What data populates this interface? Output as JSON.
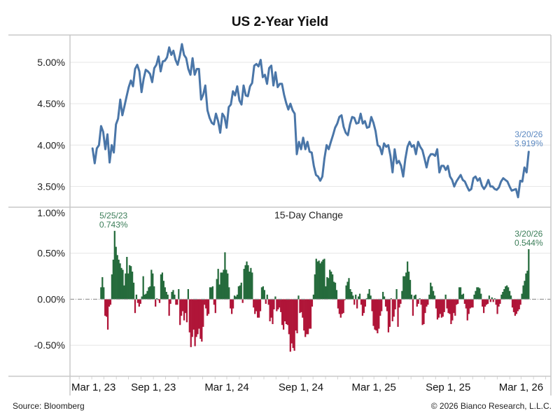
{
  "chart_data": {
    "title": "US 2-Year Yield",
    "grid": true,
    "x_axis": {
      "type": "date",
      "range": [
        "2023-02-06",
        "2026-05-14"
      ],
      "minor_ticks": "monthly",
      "ticks": [
        {
          "date": "2023-03-01",
          "label": "Mar 1, 23"
        },
        {
          "date": "2023-09-01",
          "label": "Sep 1, 23"
        },
        {
          "date": "2024-03-01",
          "label": "Mar 1, 24"
        },
        {
          "date": "2024-09-01",
          "label": "Sep 1, 24"
        },
        {
          "date": "2025-03-01",
          "label": "Mar 1, 25"
        },
        {
          "date": "2025-09-01",
          "label": "Sep 1, 25"
        },
        {
          "date": "2026-03-01",
          "label": "Mar 1, 26"
        }
      ]
    },
    "panels": [
      {
        "type": "line",
        "name": "yield",
        "ylabel": "",
        "ylim": [
          3.25,
          5.33
        ],
        "y_ticks": [
          {
            "value": 3.5,
            "label": "3.50%"
          },
          {
            "value": 4.0,
            "label": "4.00%"
          },
          {
            "value": 4.5,
            "label": "4.50%"
          },
          {
            "value": 5.0,
            "label": "5.00%"
          }
        ],
        "series": [
          {
            "name": "US 2-Year Yield (%)",
            "color": "#4a76a8",
            "start": "2023-04-03",
            "end": "2026-03-20",
            "spacing": "evenly spaced samples between start and end",
            "values": [
              3.96,
              3.78,
              3.96,
              4.0,
              4.23,
              4.16,
              3.95,
              4.13,
              3.79,
              4.0,
              3.91,
              4.25,
              4.32,
              4.55,
              4.36,
              4.47,
              4.59,
              4.7,
              4.78,
              4.71,
              4.92,
              4.97,
              4.89,
              4.64,
              4.8,
              4.91,
              4.89,
              4.86,
              4.76,
              4.93,
              4.97,
              5.07,
              4.89,
              5.01,
              5.02,
              5.06,
              5.18,
              5.09,
              5.14,
              5.03,
              4.97,
              5.08,
              5.22,
              5.09,
              5.05,
              4.92,
              4.85,
              5.05,
              4.85,
              4.92,
              4.92,
              4.55,
              4.61,
              4.72,
              4.42,
              4.33,
              4.27,
              4.25,
              4.38,
              4.29,
              4.15,
              4.38,
              4.34,
              4.21,
              4.46,
              4.49,
              4.65,
              4.6,
              4.71,
              4.54,
              4.49,
              4.72,
              4.6,
              4.59,
              4.71,
              4.75,
              4.96,
              4.98,
              4.95,
              5.03,
              4.82,
              4.85,
              4.74,
              4.93,
              4.96,
              4.72,
              4.88,
              4.7,
              4.74,
              4.74,
              4.61,
              4.51,
              4.43,
              4.5,
              4.42,
              4.38,
              3.89,
              4.04,
              3.95,
              4.09,
              3.95,
              4.04,
              3.92,
              3.91,
              3.75,
              3.64,
              3.62,
              3.57,
              3.62,
              3.84,
              4.0,
              3.95,
              4.04,
              4.12,
              4.21,
              4.26,
              4.34,
              4.36,
              4.22,
              4.15,
              4.12,
              4.25,
              4.34,
              4.33,
              4.26,
              4.27,
              4.38,
              4.26,
              4.29,
              4.21,
              4.22,
              4.34,
              4.27,
              4.17,
              4.0,
              3.98,
              3.89,
              4.02,
              3.98,
              4.0,
              3.87,
              3.67,
              3.95,
              3.78,
              3.81,
              3.75,
              3.62,
              3.83,
              3.98,
              4.04,
              3.98,
              4.0,
              3.89,
              4.04,
              3.98,
              3.94,
              3.84,
              3.73,
              3.85,
              3.89,
              3.89,
              3.87,
              3.95,
              3.67,
              3.75,
              3.75,
              3.7,
              3.75,
              3.62,
              3.58,
              3.5,
              3.56,
              3.6,
              3.64,
              3.58,
              3.56,
              3.5,
              3.45,
              3.47,
              3.6,
              3.62,
              3.57,
              3.6,
              3.51,
              3.47,
              3.51,
              3.58,
              3.5,
              3.5,
              3.47,
              3.46,
              3.49,
              3.56,
              3.6,
              3.58,
              3.56,
              3.5,
              3.45,
              3.46,
              3.47,
              3.37,
              3.57,
              3.56,
              3.73,
              3.67,
              3.919
            ]
          }
        ],
        "annotations": [
          {
            "date": "2026-03-20",
            "value": 3.919,
            "lines": [
              "3/20/26",
              "3.919%"
            ],
            "color": "#5b88c0"
          }
        ]
      },
      {
        "type": "bar",
        "name": "change",
        "title": "15-Day Change",
        "ylabel": "",
        "ylim": [
          -0.833,
          1.0
        ],
        "zero_line": "dashed",
        "positive_color": "#256b3c",
        "negative_color": "#b01538",
        "y_ticks": [
          {
            "value": -0.5,
            "label": "-0.50%"
          },
          {
            "value": 0.0,
            "label": "0.00%"
          },
          {
            "value": 0.5,
            "label": "0.50%"
          },
          {
            "value": 1.0,
            "label": "1.00%"
          }
        ],
        "series": [
          {
            "name": "15-Day Change (pct pts)",
            "start": "2023-04-24",
            "end": "2026-03-20",
            "spacing": "evenly spaced samples between start and end",
            "values": [
              0.13,
              0.24,
              0.13,
              -0.18,
              -0.19,
              -0.33,
              -0.08,
              -0.06,
              0.27,
              0.43,
              0.743,
              0.57,
              0.48,
              0.43,
              0.39,
              0.34,
              0.32,
              0.15,
              0.28,
              0.46,
              0.28,
              0.37,
              0.36,
              0.3,
              0.18,
              -0.15,
              0.05,
              -0.04,
              -0.08,
              -0.05,
              0.03,
              0.25,
              0.05,
              0.06,
              0.09,
              0.13,
              0.14,
              0.32,
              0.28,
              0.14,
              -0.08,
              0.01,
              -0.01,
              -0.04,
              0.27,
              0.29,
              0.2,
              0.13,
              0.08,
              0.05,
              -0.18,
              -0.05,
              0.08,
              0.1,
              0.05,
              -0.06,
              -0.06,
              0.11,
              -0.28,
              -0.18,
              -0.13,
              -0.23,
              -0.15,
              -0.25,
              0.11,
              -0.36,
              -0.52,
              -0.41,
              -0.33,
              -0.51,
              -0.41,
              -0.38,
              -0.32,
              -0.43,
              -0.46,
              -0.3,
              -0.06,
              -0.1,
              -0.18,
              -0.16,
              0.13,
              0.13,
              0.14,
              -0.06,
              -0.15,
              0.22,
              0.33,
              0.16,
              0.29,
              0.29,
              0.32,
              0.51,
              0.32,
              0.28,
              0.13,
              -0.1,
              -0.16,
              -0.1,
              0.04,
              0.03,
              0.05,
              0.14,
              0.15,
              0.18,
              -0.04,
              0.33,
              0.37,
              0.41,
              0.37,
              0.3,
              0.34,
              0.29,
              -0.09,
              -0.16,
              -0.13,
              -0.2,
              -0.2,
              -0.13,
              0.13,
              0.14,
              0.1,
              -0.05,
              0.05,
              -0.06,
              -0.24,
              -0.2,
              -0.27,
              -0.11,
              0.03,
              -0.13,
              -0.11,
              -0.09,
              -0.14,
              -0.28,
              -0.33,
              -0.24,
              -0.27,
              -0.28,
              -0.38,
              -0.57,
              -0.48,
              -0.53,
              -0.56,
              -0.34,
              -0.37,
              0.04,
              -0.15,
              -0.14,
              -0.2,
              -0.34,
              -0.41,
              -0.38,
              -0.38,
              -0.32,
              -0.32,
              -0.08,
              0.05,
              0.27,
              0.44,
              0.41,
              0.42,
              0.39,
              0.41,
              0.43,
              0.44,
              0.14,
              0.24,
              0.23,
              0.32,
              0.3,
              0.27,
              0.19,
              0.18,
              0.1,
              -0.1,
              -0.16,
              -0.2,
              -0.16,
              -0.15,
              -0.01,
              0.15,
              0.19,
              0.23,
              0.11,
              0.08,
              0.04,
              -0.06,
              0.05,
              -0.1,
              0.03,
              0.06,
              -0.06,
              -0.18,
              -0.15,
              -0.08,
              0.01,
              0.06,
              0.11,
              0.04,
              -0.13,
              -0.29,
              -0.33,
              -0.34,
              -0.37,
              -0.32,
              -0.18,
              -0.13,
              0.08,
              0.03,
              -0.08,
              -0.13,
              -0.36,
              -0.3,
              0.01,
              -0.24,
              -0.19,
              -0.11,
              0.11,
              -0.3,
              -0.09,
              -0.05,
              0.09,
              0.25,
              0.25,
              0.29,
              0.41,
              0.3,
              0.21,
              0.05,
              -0.18,
              0.04,
              0.05,
              -0.08,
              -0.05,
              0.01,
              -0.06,
              -0.28,
              -0.27,
              -0.15,
              -0.08,
              -0.06,
              0.05,
              0.18,
              0.14,
              0.09,
              0.04,
              -0.1,
              -0.22,
              -0.2,
              -0.16,
              -0.2,
              -0.19,
              -0.14,
              0.05,
              -0.1,
              -0.15,
              -0.16,
              -0.27,
              -0.23,
              -0.15,
              -0.18,
              -0.06,
              -0.05,
              0.13,
              0.13,
              0.05,
              0.06,
              -0.05,
              -0.1,
              -0.23,
              -0.16,
              -0.1,
              -0.09,
              -0.09,
              0.05,
              0.09,
              0.13,
              0.13,
              0.12,
              0.06,
              -0.08,
              -0.15,
              -0.08,
              -0.06,
              -0.05,
              0.04,
              -0.03,
              0.02,
              -0.03,
              0.01,
              -0.06,
              -0.16,
              -0.08,
              -0.05,
              0.05,
              0.08,
              0.11,
              0.14,
              0.15,
              0.13,
              0.09,
              0.04,
              -0.09,
              -0.14,
              -0.18,
              -0.16,
              -0.13,
              -0.11,
              -0.06,
              0.06,
              0.15,
              0.2,
              0.28,
              0.31,
              0.544
            ]
          }
        ],
        "annotations": [
          {
            "date": "2023-05-25",
            "value": 0.743,
            "lines": [
              "5/25/23",
              "0.743%"
            ],
            "color": "#3b7d58"
          },
          {
            "date": "2026-03-20",
            "value": 0.544,
            "lines": [
              "3/20/26",
              "0.544%"
            ],
            "color": "#3b7d58"
          }
        ]
      }
    ]
  },
  "footer": {
    "source": "Source: Bloomberg",
    "copyright": "© 2026 Bianco Research, L.L.C."
  }
}
